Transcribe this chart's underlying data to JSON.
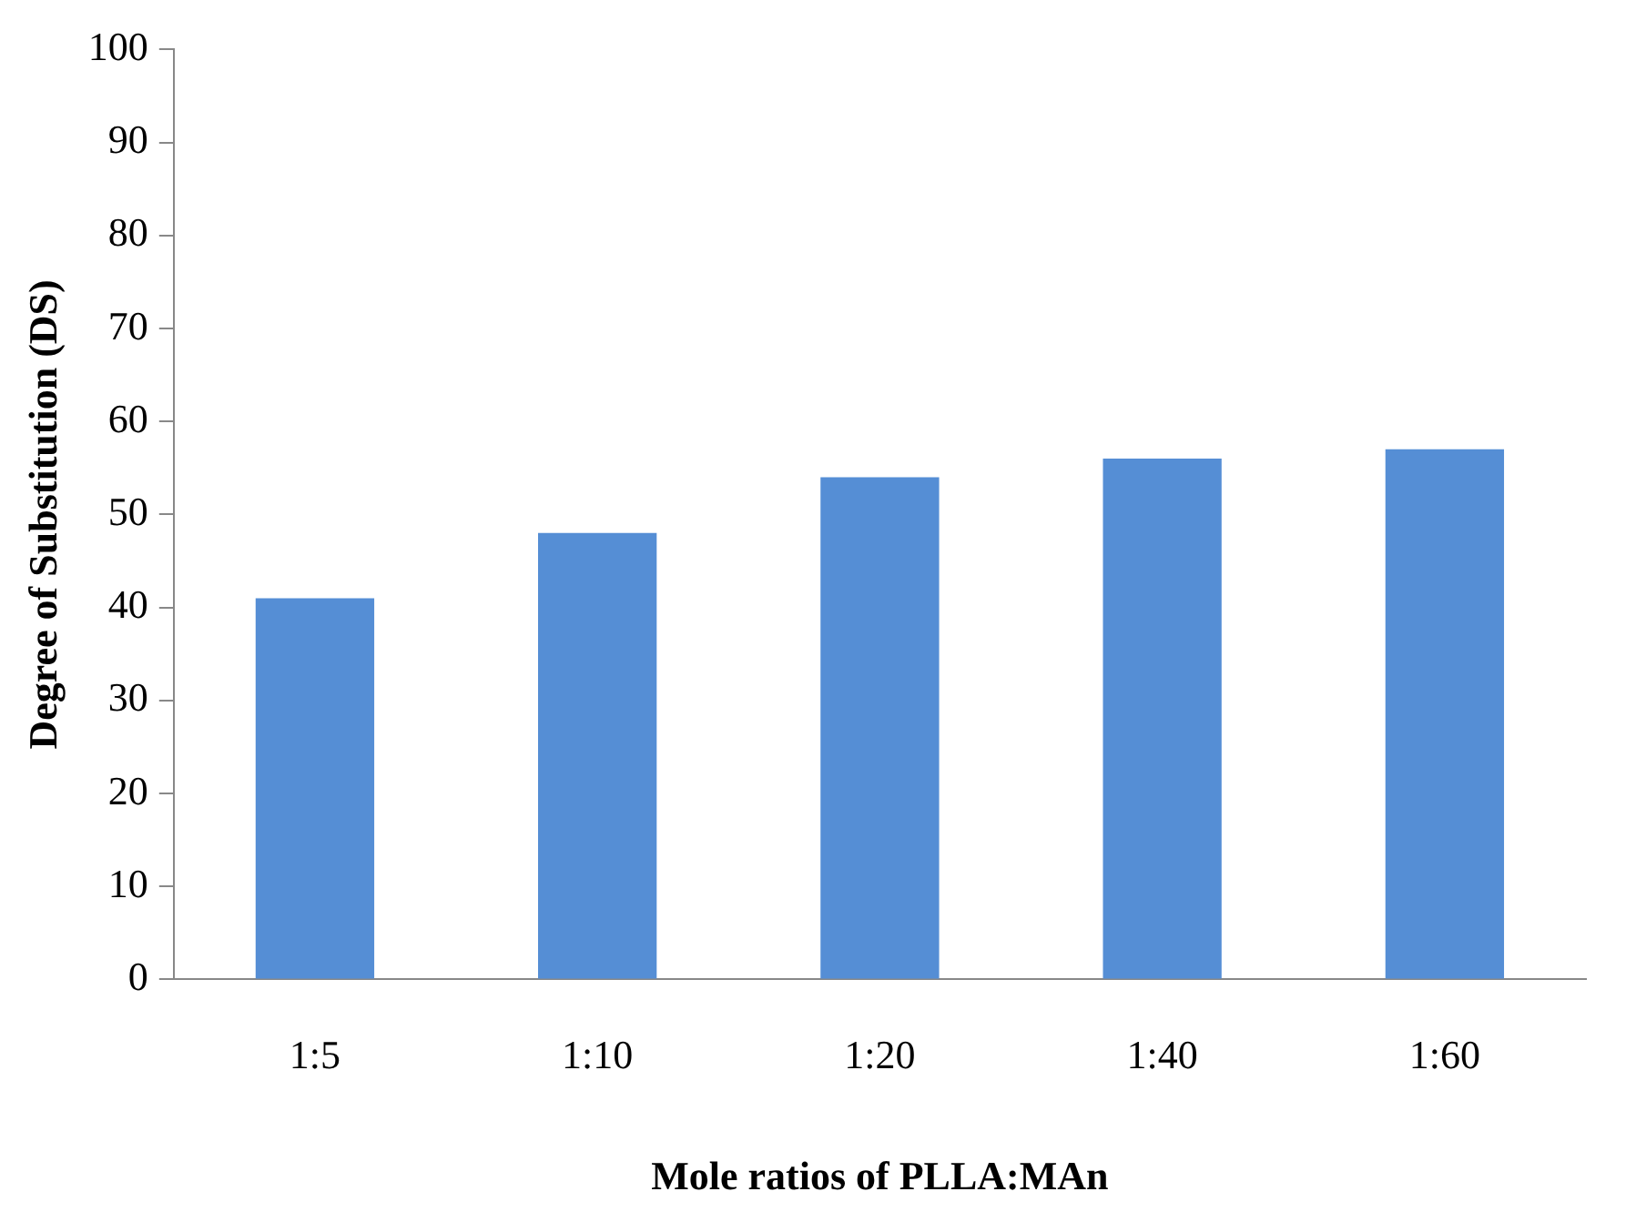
{
  "chart_data": {
    "type": "bar",
    "xlabel": "Mole ratios of PLLA:MAn",
    "ylabel": "Degree of Substitution (DS)",
    "categories": [
      "1:5",
      "1:10",
      "1:20",
      "1:40",
      "1:60"
    ],
    "values": [
      41,
      48,
      54,
      56,
      57
    ],
    "color": "#558ed5",
    "ylim": [
      0,
      100
    ],
    "yticks": [
      0,
      10,
      20,
      30,
      40,
      50,
      60,
      70,
      80,
      90,
      100
    ],
    "grid": false,
    "legend": false
  }
}
